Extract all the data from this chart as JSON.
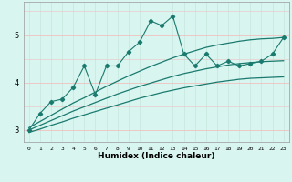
{
  "title": "",
  "xlabel": "Humidex (Indice chaleur)",
  "bg_color": "#d8f5f0",
  "line_color": "#1a7a6e",
  "grid_color_v": "#c8e8e0",
  "grid_color_h": "#f0c0c0",
  "x_data": [
    0,
    1,
    2,
    3,
    4,
    5,
    6,
    7,
    8,
    9,
    10,
    11,
    12,
    13,
    14,
    15,
    16,
    17,
    18,
    19,
    20,
    21,
    22,
    23
  ],
  "y_main": [
    3.0,
    3.35,
    3.6,
    3.65,
    3.9,
    4.35,
    3.75,
    4.35,
    4.35,
    4.65,
    4.85,
    5.3,
    5.2,
    5.4,
    4.6,
    4.35,
    4.6,
    4.35,
    4.45,
    4.35,
    4.4,
    4.45,
    4.6,
    4.95
  ],
  "y_upper": [
    3.05,
    3.18,
    3.31,
    3.44,
    3.57,
    3.68,
    3.8,
    3.92,
    4.03,
    4.14,
    4.24,
    4.34,
    4.43,
    4.52,
    4.6,
    4.67,
    4.74,
    4.79,
    4.83,
    4.87,
    4.9,
    4.92,
    4.93,
    4.95
  ],
  "y_mid": [
    3.0,
    3.1,
    3.2,
    3.3,
    3.4,
    3.49,
    3.58,
    3.67,
    3.76,
    3.84,
    3.92,
    3.99,
    4.06,
    4.13,
    4.19,
    4.24,
    4.29,
    4.33,
    4.37,
    4.4,
    4.42,
    4.44,
    4.45,
    4.46
  ],
  "y_lower": [
    2.95,
    3.02,
    3.1,
    3.17,
    3.25,
    3.32,
    3.39,
    3.46,
    3.53,
    3.6,
    3.67,
    3.73,
    3.79,
    3.84,
    3.89,
    3.93,
    3.97,
    4.01,
    4.04,
    4.07,
    4.09,
    4.1,
    4.11,
    4.12
  ],
  "xlim": [
    -0.5,
    23.5
  ],
  "ylim": [
    2.75,
    5.7
  ],
  "yticks": [
    3,
    4,
    5
  ],
  "xticks": [
    0,
    1,
    2,
    3,
    4,
    5,
    6,
    7,
    8,
    9,
    10,
    11,
    12,
    13,
    14,
    15,
    16,
    17,
    18,
    19,
    20,
    21,
    22,
    23
  ]
}
